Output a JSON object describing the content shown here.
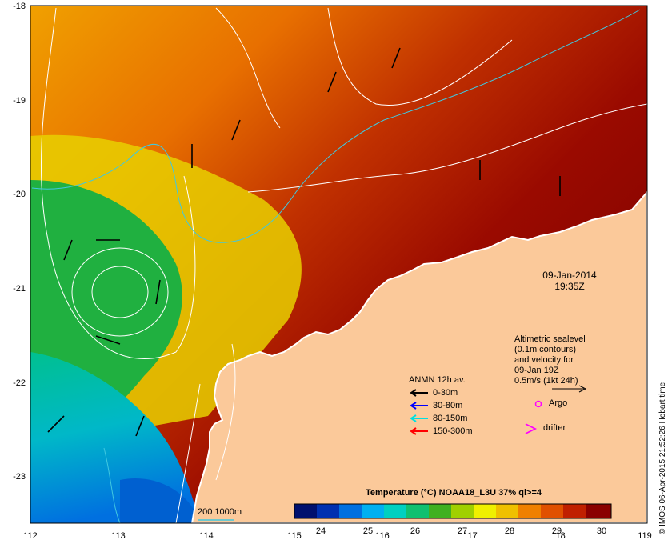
{
  "map": {
    "date": "09-Jan-2014",
    "time": "19:35Z",
    "lat_ticks": [
      "-18",
      "-19",
      "-20",
      "-21",
      "-22",
      "-23"
    ],
    "lon_ticks": [
      "112",
      "113",
      "114",
      "115",
      "116",
      "117",
      "118",
      "119"
    ],
    "land_color": "#fbc99a",
    "ocean_palette": [
      "#00208c",
      "#0060d0",
      "#00b4e0",
      "#00c8a0",
      "#20b040",
      "#90d000",
      "#e8e800",
      "#f0a000",
      "#e06000",
      "#b01800",
      "#7a0000"
    ]
  },
  "altimetry": {
    "line1": "Altimetric sealevel",
    "line2": "(0.1m contours)",
    "line3": "and velocity for",
    "line4": "09-Jan 19Z",
    "line5": "0.5m/s (1kt 24h)"
  },
  "anmn_legend": {
    "title": "ANMN 12h av.",
    "rows": [
      {
        "label": "0-30m",
        "color": "#000000"
      },
      {
        "label": "30-80m",
        "color": "#0000ff"
      },
      {
        "label": "80-150m",
        "color": "#00e0e0"
      },
      {
        "label": "150-300m",
        "color": "#ff0000"
      }
    ]
  },
  "markers": {
    "argo": "Argo",
    "argo_color": "#ff00ff",
    "drifter": "drifter",
    "drifter_color": "#ff00ff"
  },
  "isobath": {
    "label": "200 1000m",
    "color": "#40c8e0"
  },
  "colorbar": {
    "title": "Temperature (°C) NOAA18_L3U 37% ql>=4",
    "ticks": [
      "24",
      "25",
      "26",
      "27",
      "28",
      "29",
      "30"
    ],
    "colors": [
      "#00106e",
      "#0030b0",
      "#0070e0",
      "#00b0f0",
      "#00d0c0",
      "#10c070",
      "#40b020",
      "#a0d000",
      "#f0f000",
      "#f0c000",
      "#f08000",
      "#e05000",
      "#c02000",
      "#8a0000"
    ]
  },
  "credit": "© IMOS 06-Apr-2015 21:52:26 Hobart time"
}
